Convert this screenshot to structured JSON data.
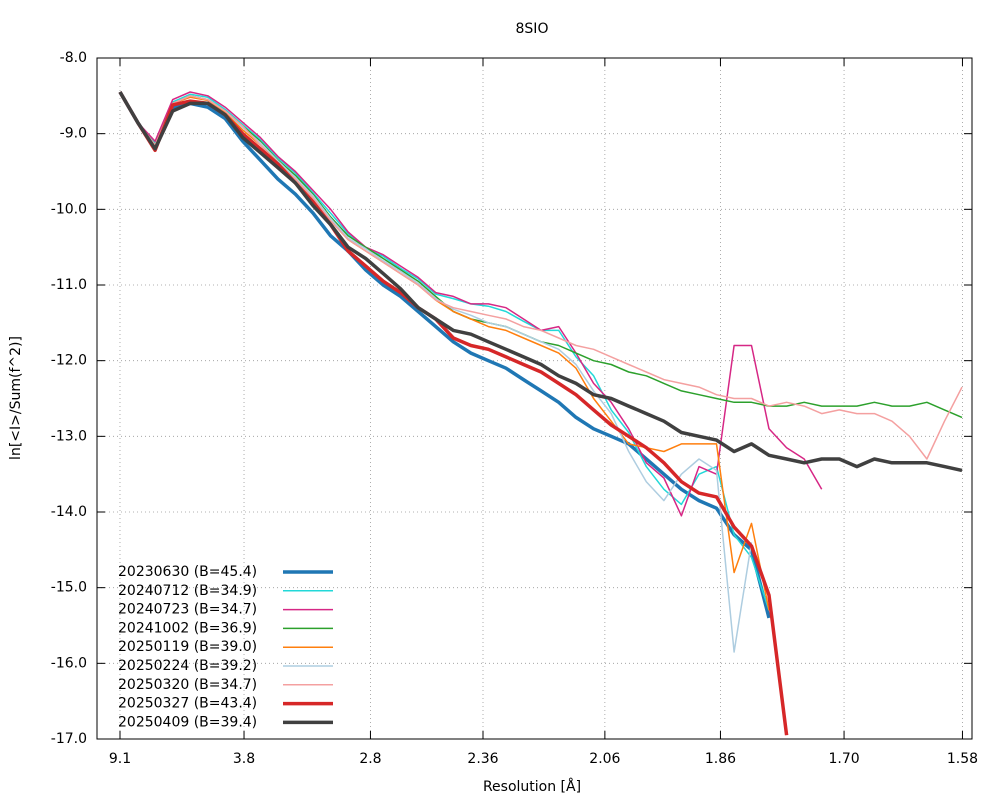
{
  "chart_data": {
    "type": "line",
    "title": "8SIO",
    "xlabel": "Resolution [Å]",
    "ylabel": "ln[<I>/Sum(f^2)]",
    "x": [
      0.0121,
      0.0202,
      0.0283,
      0.0364,
      0.0445,
      0.0526,
      0.0606,
      0.0687,
      0.0768,
      0.0849,
      0.093,
      0.1011,
      0.1092,
      0.1173,
      0.1254,
      0.1335,
      0.1415,
      0.1496,
      0.1577,
      0.1658,
      0.1739,
      0.182,
      0.1901,
      0.1982,
      0.2063,
      0.2144,
      0.2224,
      0.2305,
      0.2386,
      0.2467,
      0.2548,
      0.2629,
      0.271,
      0.2791,
      0.2872,
      0.2953,
      0.3033,
      0.3114,
      0.3195,
      0.3276,
      0.3357,
      0.3438,
      0.3519,
      0.36,
      0.3681,
      0.3762,
      0.3842,
      0.3923,
      0.4004
    ],
    "xlim": [
      0.0015,
      0.405
    ],
    "xticks": [
      {
        "value": 0.0121,
        "label": "9.1"
      },
      {
        "value": 0.0693,
        "label": "3.8"
      },
      {
        "value": 0.1276,
        "label": "2.8"
      },
      {
        "value": 0.1795,
        "label": "2.36"
      },
      {
        "value": 0.2357,
        "label": "2.06"
      },
      {
        "value": 0.289,
        "label": "1.86"
      },
      {
        "value": 0.346,
        "label": "1.70"
      },
      {
        "value": 0.4006,
        "label": "1.58"
      }
    ],
    "ylim": [
      -17,
      -8
    ],
    "yticks": [
      {
        "value": -8,
        "label": "-8.0"
      },
      {
        "value": -9,
        "label": "-9.0"
      },
      {
        "value": -10,
        "label": "-10.0"
      },
      {
        "value": -11,
        "label": "-11.0"
      },
      {
        "value": -12,
        "label": "-12.0"
      },
      {
        "value": -13,
        "label": "-13.0"
      },
      {
        "value": -14,
        "label": "-14.0"
      },
      {
        "value": -15,
        "label": "-15.0"
      },
      {
        "value": -16,
        "label": "-16.0"
      },
      {
        "value": -17,
        "label": "-17.0"
      }
    ],
    "grid": true,
    "legend": "lower left",
    "series": [
      {
        "name": "20230630 (B=45.4)",
        "color": "#1f77b4",
        "linewidth": 3.5,
        "values": [
          -8.45,
          -8.85,
          -9.2,
          -8.65,
          -8.6,
          -8.65,
          -8.8,
          -9.1,
          -9.35,
          -9.6,
          -9.8,
          -10.05,
          -10.35,
          -10.55,
          -10.8,
          -11.0,
          -11.15,
          -11.35,
          -11.55,
          -11.75,
          -11.9,
          -12.0,
          -12.1,
          -12.25,
          -12.4,
          -12.55,
          -12.75,
          -12.9,
          -13.0,
          -13.1,
          -13.3,
          -13.5,
          -13.7,
          -13.85,
          -13.95,
          -14.3,
          -14.5,
          -15.4,
          null,
          null,
          null,
          null,
          null,
          null,
          null,
          null,
          null,
          null,
          null
        ]
      },
      {
        "name": "20240712 (B=34.9)",
        "color": "#22d8d8",
        "linewidth": 1.5,
        "values": [
          -8.45,
          -8.85,
          -9.12,
          -8.58,
          -8.48,
          -8.52,
          -8.68,
          -8.88,
          -9.08,
          -9.32,
          -9.52,
          -9.78,
          -10.05,
          -10.32,
          -10.52,
          -10.62,
          -10.78,
          -10.92,
          -11.12,
          -11.18,
          -11.25,
          -11.28,
          -11.35,
          -11.48,
          -11.6,
          -11.6,
          -11.95,
          -12.2,
          -12.65,
          -12.95,
          -13.4,
          -13.7,
          -13.9,
          -13.5,
          -13.4,
          -14.3,
          -14.6,
          -15.3,
          null,
          null,
          null,
          null,
          null,
          null,
          null,
          null,
          null,
          null,
          null
        ]
      },
      {
        "name": "20240723 (B=34.7)",
        "color": "#d62785",
        "linewidth": 1.5,
        "values": [
          -8.45,
          -8.85,
          -9.1,
          -8.55,
          -8.45,
          -8.5,
          -8.65,
          -8.85,
          -9.05,
          -9.3,
          -9.5,
          -9.75,
          -10.0,
          -10.3,
          -10.5,
          -10.6,
          -10.75,
          -10.9,
          -11.1,
          -11.15,
          -11.25,
          -11.25,
          -11.3,
          -11.45,
          -11.6,
          -11.55,
          -11.9,
          -12.3,
          -12.55,
          -12.9,
          -13.35,
          -13.55,
          -14.05,
          -13.4,
          -13.5,
          -11.8,
          -11.8,
          -12.9,
          -13.15,
          -13.3,
          -13.7,
          null,
          null,
          null,
          null,
          null,
          null,
          null,
          null
        ]
      },
      {
        "name": "20241002 (B=36.9)",
        "color": "#2ca02c",
        "linewidth": 1.5,
        "values": [
          -8.45,
          -8.85,
          -9.15,
          -8.6,
          -8.5,
          -8.55,
          -8.7,
          -8.9,
          -9.1,
          -9.35,
          -9.55,
          -9.8,
          -10.1,
          -10.35,
          -10.5,
          -10.65,
          -10.8,
          -10.95,
          -11.15,
          -11.35,
          -11.45,
          -11.5,
          -11.55,
          -11.65,
          -11.75,
          -11.8,
          -11.9,
          -12.0,
          -12.05,
          -12.15,
          -12.2,
          -12.3,
          -12.4,
          -12.45,
          -12.5,
          -12.55,
          -12.55,
          -12.6,
          -12.6,
          -12.55,
          -12.6,
          -12.6,
          -12.6,
          -12.55,
          -12.6,
          -12.6,
          -12.55,
          -12.65,
          -12.75
        ]
      },
      {
        "name": "20250119 (B=39.0)",
        "color": "#ff7f0e",
        "linewidth": 1.5,
        "values": [
          -8.45,
          -8.85,
          -9.18,
          -8.6,
          -8.52,
          -8.56,
          -8.72,
          -8.95,
          -9.15,
          -9.38,
          -9.6,
          -9.85,
          -10.15,
          -10.4,
          -10.55,
          -10.7,
          -10.85,
          -11.0,
          -11.2,
          -11.35,
          -11.45,
          -11.55,
          -11.6,
          -11.7,
          -11.8,
          -11.9,
          -12.1,
          -12.5,
          -12.8,
          -13.1,
          -13.15,
          -13.2,
          -13.1,
          -13.1,
          -13.1,
          -14.8,
          -14.15,
          -15.3,
          null,
          null,
          null,
          null,
          null,
          null,
          null,
          null,
          null,
          null,
          null
        ]
      },
      {
        "name": "20250224 (B=39.2)",
        "color": "#aecde0",
        "linewidth": 1.5,
        "values": [
          -8.45,
          -8.85,
          -9.16,
          -8.6,
          -8.5,
          -8.55,
          -8.7,
          -8.92,
          -9.12,
          -9.36,
          -9.58,
          -9.82,
          -10.12,
          -10.38,
          -10.52,
          -10.68,
          -10.82,
          -10.98,
          -11.18,
          -11.32,
          -11.4,
          -11.5,
          -11.55,
          -11.65,
          -11.75,
          -11.85,
          -12.05,
          -12.4,
          -12.7,
          -13.2,
          -13.6,
          -13.85,
          -13.5,
          -13.3,
          -13.45,
          -15.85,
          -14.4,
          null,
          null,
          null,
          null,
          null,
          null,
          null,
          null,
          null,
          null,
          null,
          null
        ]
      },
      {
        "name": "20250320 (B=34.7)",
        "color": "#f4a0a0",
        "linewidth": 1.5,
        "values": [
          -8.45,
          -8.85,
          -9.15,
          -8.6,
          -8.5,
          -8.55,
          -8.7,
          -8.9,
          -9.15,
          -9.4,
          -9.6,
          -9.85,
          -10.15,
          -10.4,
          -10.55,
          -10.7,
          -10.85,
          -11.0,
          -11.2,
          -11.3,
          -11.35,
          -11.4,
          -11.45,
          -11.55,
          -11.6,
          -11.7,
          -11.8,
          -11.85,
          -11.95,
          -12.05,
          -12.15,
          -12.25,
          -12.3,
          -12.35,
          -12.45,
          -12.5,
          -12.5,
          -12.6,
          -12.55,
          -12.6,
          -12.7,
          -12.65,
          -12.7,
          -12.7,
          -12.8,
          -13.0,
          -13.3,
          -12.8,
          -12.35
        ]
      },
      {
        "name": "20250327 (B=43.4)",
        "color": "#d62728",
        "linewidth": 3.5,
        "values": [
          -8.45,
          -8.85,
          -9.22,
          -8.62,
          -8.57,
          -8.6,
          -8.75,
          -9.0,
          -9.2,
          -9.4,
          -9.65,
          -9.9,
          -10.2,
          -10.55,
          -10.75,
          -10.95,
          -11.1,
          -11.3,
          -11.45,
          -11.7,
          -11.8,
          -11.85,
          -11.95,
          -12.05,
          -12.15,
          -12.3,
          -12.45,
          -12.65,
          -12.85,
          -13.0,
          -13.15,
          -13.35,
          -13.6,
          -13.75,
          -13.8,
          -14.2,
          -14.45,
          -15.1,
          -16.95,
          null,
          null,
          null,
          null,
          null,
          null,
          null,
          null,
          null,
          null
        ]
      },
      {
        "name": "20250409 (B=39.4)",
        "color": "#404040",
        "linewidth": 3.5,
        "values": [
          -8.45,
          -8.85,
          -9.2,
          -8.7,
          -8.6,
          -8.6,
          -8.75,
          -9.05,
          -9.25,
          -9.45,
          -9.65,
          -9.95,
          -10.2,
          -10.5,
          -10.65,
          -10.85,
          -11.05,
          -11.3,
          -11.45,
          -11.6,
          -11.65,
          -11.75,
          -11.85,
          -11.95,
          -12.05,
          -12.2,
          -12.3,
          -12.45,
          -12.5,
          -12.6,
          -12.7,
          -12.8,
          -12.95,
          -13.0,
          -13.05,
          -13.2,
          -13.1,
          -13.25,
          -13.3,
          -13.35,
          -13.3,
          -13.3,
          -13.4,
          -13.3,
          -13.35,
          -13.35,
          -13.35,
          -13.4,
          -13.45
        ]
      }
    ]
  }
}
